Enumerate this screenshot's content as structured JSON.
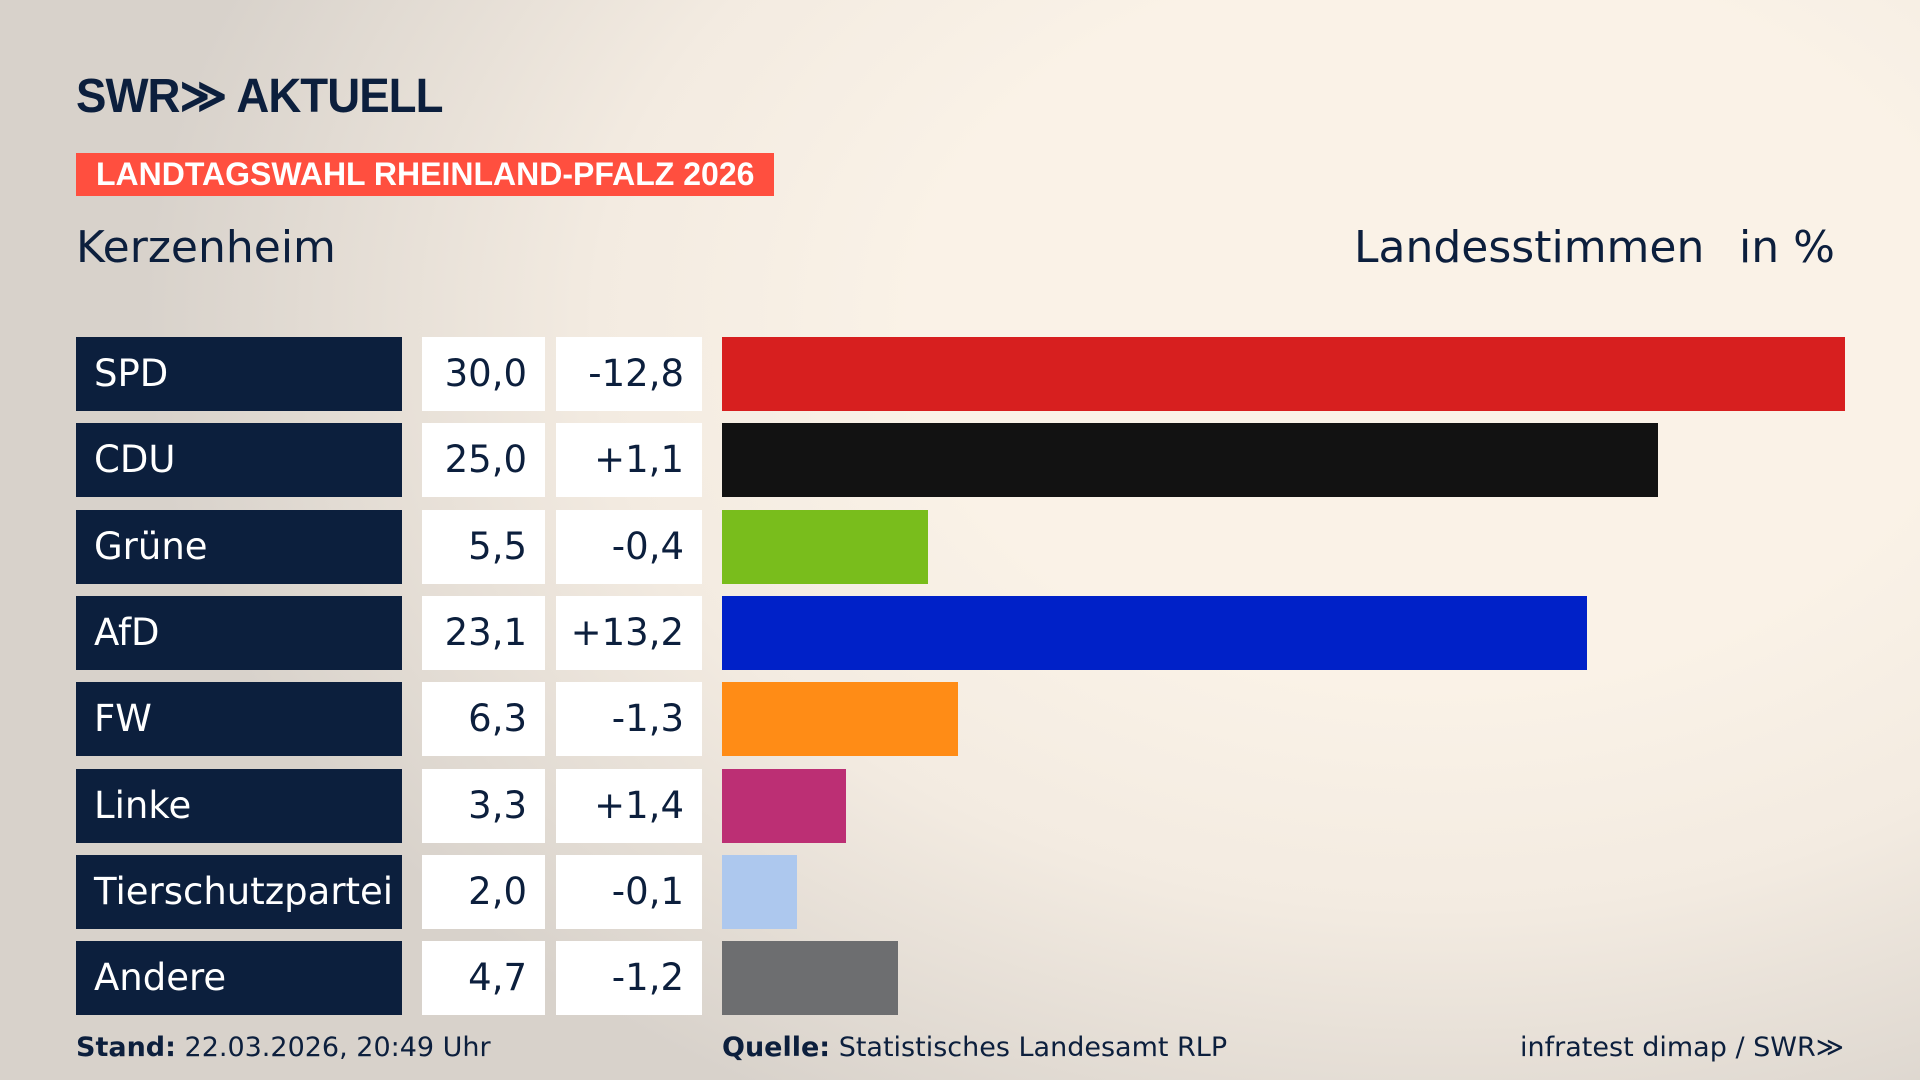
{
  "header": {
    "logo": "SWR≫ AKTUELL",
    "banner": "LANDTAGSWAHL RHEINLAND-PFALZ 2026",
    "location": "Kerzenheim",
    "vote_type": "Landesstimmen",
    "unit": "in %"
  },
  "chart_data": {
    "type": "bar",
    "orientation": "horizontal",
    "categories": [
      "SPD",
      "CDU",
      "Grüne",
      "AfD",
      "FW",
      "Linke",
      "Tierschutzpartei",
      "Andere"
    ],
    "values": [
      30.0,
      25.0,
      5.5,
      23.1,
      6.3,
      3.3,
      2.0,
      4.7
    ],
    "value_labels": [
      "30,0",
      "25,0",
      "5,5",
      "23,1",
      "6,3",
      "3,3",
      "2,0",
      "4,7"
    ],
    "diff_labels": [
      "-12,8",
      "+1,1",
      "-0,4",
      "+13,2",
      "-1,3",
      "+1,4",
      "-0,1",
      "-1,2"
    ],
    "colors": [
      "#d71f1f",
      "#121212",
      "#79bd1c",
      "#0021c8",
      "#ff8c16",
      "#bc2f74",
      "#adc8ee",
      "#6d6e70"
    ],
    "xlim": [
      0,
      30
    ]
  },
  "footer": {
    "stand_label": "Stand:",
    "stand_value": "22.03.2026, 20:49 Uhr",
    "source_label": "Quelle:",
    "source_value": "Statistisches Landesamt RLP",
    "credit": "infratest dimap / SWR≫"
  }
}
